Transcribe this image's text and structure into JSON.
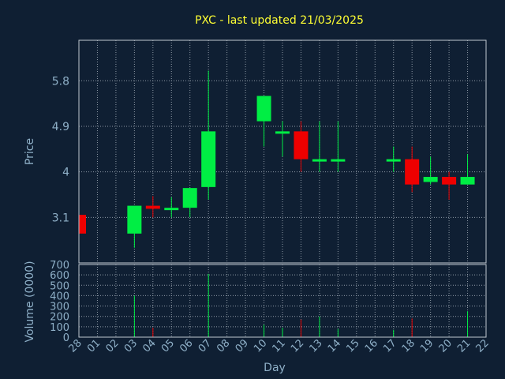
{
  "colors": {
    "background": "#0f1f33",
    "frame": "#c0c8d0",
    "grid": "#8f9aa6",
    "title": "#ffff33",
    "axis_text": "#8fb0c8",
    "up": "#00ee44",
    "down": "#ee0000"
  },
  "chart_data": {
    "type": "candlestick",
    "title": "PXC - last updated 21/03/2025",
    "xlabel": "Day",
    "price_panel": {
      "ylabel": "Price",
      "yticks": [
        3.1,
        4,
        4.9,
        5.8
      ],
      "ytick_labels": [
        "3.1",
        "4",
        "4.9",
        "5.8"
      ],
      "ylim": [
        2.2,
        6.6
      ],
      "grid": true
    },
    "volume_panel": {
      "ylabel": "Volume (0000)",
      "yticks": [
        0,
        100,
        200,
        300,
        400,
        500,
        600,
        700
      ],
      "ytick_labels": [
        "0",
        "100",
        "200",
        "300",
        "400",
        "500",
        "600",
        "700"
      ],
      "ylim": [
        0,
        700
      ],
      "grid": true
    },
    "categories": [
      "28",
      "01",
      "02",
      "03",
      "04",
      "05",
      "06",
      "07",
      "08",
      "09",
      "10",
      "11",
      "12",
      "13",
      "14",
      "15",
      "16",
      "17",
      "18",
      "19",
      "20",
      "21",
      "22"
    ],
    "candles": [
      {
        "day": "28",
        "open": 3.15,
        "close": 2.78,
        "high": 3.15,
        "low": 2.78
      },
      {
        "day": "03",
        "open": 2.78,
        "close": 3.33,
        "high": 3.33,
        "low": 2.5
      },
      {
        "day": "04",
        "open": 3.33,
        "close": 3.27,
        "high": 3.52,
        "low": 3.1
      },
      {
        "day": "05",
        "open": 3.27,
        "close": 3.29,
        "high": 3.5,
        "low": 3.1
      },
      {
        "day": "06",
        "open": 3.29,
        "close": 3.68,
        "high": 3.68,
        "low": 3.1
      },
      {
        "day": "07",
        "open": 3.7,
        "close": 4.8,
        "high": 6.0,
        "low": 3.45
      },
      {
        "day": "10",
        "open": 5.0,
        "close": 5.5,
        "high": 5.5,
        "low": 4.5
      },
      {
        "day": "11",
        "open": 4.8,
        "close": 4.8,
        "high": 5.0,
        "low": 4.3
      },
      {
        "day": "12",
        "open": 4.8,
        "close": 4.25,
        "high": 5.0,
        "low": 4.0
      },
      {
        "day": "13",
        "open": 4.25,
        "close": 4.25,
        "high": 5.0,
        "low": 4.0
      },
      {
        "day": "14",
        "open": 4.25,
        "close": 4.25,
        "high": 5.0,
        "low": 4.0
      },
      {
        "day": "17",
        "open": 4.25,
        "close": 4.25,
        "high": 4.5,
        "low": 4.0
      },
      {
        "day": "18",
        "open": 4.25,
        "close": 3.75,
        "high": 4.5,
        "low": 3.6
      },
      {
        "day": "19",
        "open": 3.8,
        "close": 3.9,
        "high": 4.3,
        "low": 3.75
      },
      {
        "day": "20",
        "open": 3.9,
        "close": 3.75,
        "high": 4.0,
        "low": 3.45
      },
      {
        "day": "21",
        "open": 3.75,
        "close": 3.9,
        "high": 4.35,
        "low": 3.75
      }
    ],
    "volumes": [
      {
        "day": "03",
        "value": 400,
        "dir": "up"
      },
      {
        "day": "04",
        "value": 90,
        "dir": "down"
      },
      {
        "day": "07",
        "value": 610,
        "dir": "up"
      },
      {
        "day": "10",
        "value": 120,
        "dir": "up"
      },
      {
        "day": "11",
        "value": 90,
        "dir": "up"
      },
      {
        "day": "12",
        "value": 170,
        "dir": "down"
      },
      {
        "day": "13",
        "value": 200,
        "dir": "up"
      },
      {
        "day": "14",
        "value": 80,
        "dir": "up"
      },
      {
        "day": "17",
        "value": 70,
        "dir": "up"
      },
      {
        "day": "18",
        "value": 180,
        "dir": "down"
      },
      {
        "day": "21",
        "value": 250,
        "dir": "up"
      }
    ]
  }
}
